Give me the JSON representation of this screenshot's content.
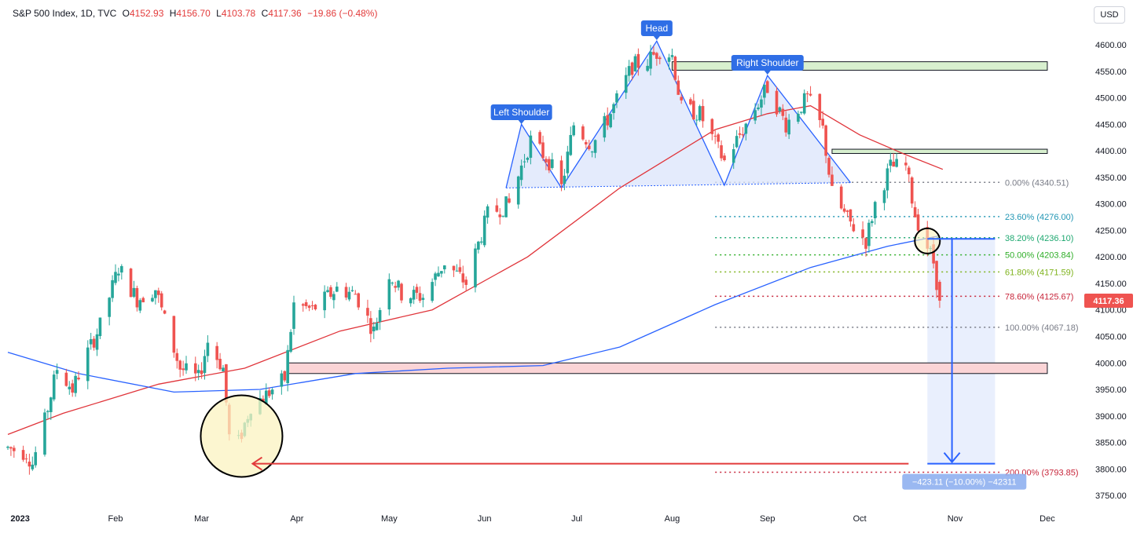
{
  "header": {
    "symbol": "S&P 500 Index, 1D, TVC",
    "open_label": "O",
    "open": "4152.93",
    "high_label": "H",
    "high": "4156.70",
    "low_label": "L",
    "low": "4103.78",
    "close_label": "C",
    "close": "4117.36",
    "change": "−19.86 (−0.48%)",
    "currency": "USD"
  },
  "colors": {
    "up": "#26a69a",
    "down": "#ef5350",
    "ma_red": "#e0343a",
    "ma_blue": "#2962ff",
    "pattern_fill": "#dbe4fb",
    "pattern_line": "#2962ff",
    "resistance_fill": "#d8f0cf",
    "support_fill": "#fbd4d6",
    "highlight_fill": "#fbf3c0",
    "projection_fill": "#e3ebfd"
  },
  "chart_data": {
    "type": "candlestick",
    "title": "S&P 500 Index, 1D, TVC",
    "ylim": [
      3725,
      4640
    ],
    "y_ticks": [
      3750,
      3800,
      3850,
      3900,
      3950,
      4000,
      4050,
      4100,
      4150,
      4200,
      4250,
      4300,
      4350,
      4400,
      4450,
      4500,
      4550,
      4600
    ],
    "y_tick_labels": [
      "3750.00",
      "3800.00",
      "3850.00",
      "3900.00",
      "3950.00",
      "4000.00",
      "4050.00",
      "4100.00",
      "4150.00",
      "4200.00",
      "4250.00",
      "4300.00",
      "4350.00",
      "4400.00",
      "4450.00",
      "4500.00",
      "4550.00",
      "4600.00"
    ],
    "x_labels": [
      {
        "date": "2023-01-01",
        "label": "2023"
      },
      {
        "date": "2023-02-01",
        "label": "Feb"
      },
      {
        "date": "2023-03-01",
        "label": "Mar"
      },
      {
        "date": "2023-04-01",
        "label": "Apr"
      },
      {
        "date": "2023-05-01",
        "label": "May"
      },
      {
        "date": "2023-06-01",
        "label": "Jun"
      },
      {
        "date": "2023-07-01",
        "label": "Jul"
      },
      {
        "date": "2023-08-01",
        "label": "Aug"
      },
      {
        "date": "2023-09-01",
        "label": "Sep"
      },
      {
        "date": "2023-10-01",
        "label": "Oct"
      },
      {
        "date": "2023-11-01",
        "label": "Nov"
      },
      {
        "date": "2023-12-01",
        "label": "Dec"
      }
    ],
    "xlim": [
      "2022-12-28",
      "2023-12-12"
    ],
    "price_anchors": [
      [
        "2022-12-28",
        3840
      ],
      [
        "2023-01-03",
        3830
      ],
      [
        "2023-01-05",
        3810
      ],
      [
        "2023-01-09",
        3890
      ],
      [
        "2023-01-13",
        3990
      ],
      [
        "2023-01-18",
        3950
      ],
      [
        "2023-01-23",
        4020
      ],
      [
        "2023-01-27",
        4070
      ],
      [
        "2023-02-02",
        4180
      ],
      [
        "2023-02-08",
        4120
      ],
      [
        "2023-02-14",
        4140
      ],
      [
        "2023-02-17",
        4080
      ],
      [
        "2023-02-22",
        3990
      ],
      [
        "2023-02-28",
        3970
      ],
      [
        "2023-03-03",
        4040
      ],
      [
        "2023-03-08",
        3990
      ],
      [
        "2023-03-10",
        3860
      ],
      [
        "2023-03-13",
        3850
      ],
      [
        "2023-03-17",
        3920
      ],
      [
        "2023-03-22",
        3940
      ],
      [
        "2023-03-28",
        3970
      ],
      [
        "2023-03-31",
        4110
      ],
      [
        "2023-04-06",
        4100
      ],
      [
        "2023-04-14",
        4140
      ],
      [
        "2023-04-20",
        4130
      ],
      [
        "2023-04-26",
        4060
      ],
      [
        "2023-05-01",
        4170
      ],
      [
        "2023-05-05",
        4130
      ],
      [
        "2023-05-12",
        4125
      ],
      [
        "2023-05-19",
        4190
      ],
      [
        "2023-05-26",
        4150
      ],
      [
        "2023-06-02",
        4280
      ],
      [
        "2023-06-09",
        4300
      ],
      [
        "2023-06-13",
        4370
      ],
      [
        "2023-06-16",
        4420
      ],
      [
        "2023-06-22",
        4380
      ],
      [
        "2023-06-26",
        4330
      ],
      [
        "2023-06-30",
        4450
      ],
      [
        "2023-07-06",
        4410
      ],
      [
        "2023-07-12",
        4470
      ],
      [
        "2023-07-19",
        4560
      ],
      [
        "2023-07-24",
        4570
      ],
      [
        "2023-07-28",
        4590
      ],
      [
        "2023-08-01",
        4580
      ],
      [
        "2023-08-04",
        4480
      ],
      [
        "2023-08-10",
        4470
      ],
      [
        "2023-08-18",
        4380
      ],
      [
        "2023-08-23",
        4430
      ],
      [
        "2023-08-28",
        4480
      ],
      [
        "2023-09-01",
        4520
      ],
      [
        "2023-09-07",
        4450
      ],
      [
        "2023-09-14",
        4500
      ],
      [
        "2023-09-19",
        4440
      ],
      [
        "2023-09-22",
        4320
      ],
      [
        "2023-09-27",
        4270
      ],
      [
        "2023-10-03",
        4230
      ],
      [
        "2023-10-06",
        4300
      ],
      [
        "2023-10-11",
        4370
      ],
      [
        "2023-10-16",
        4370
      ],
      [
        "2023-10-19",
        4280
      ],
      [
        "2023-10-23",
        4220
      ],
      [
        "2023-10-25",
        4190
      ],
      [
        "2023-10-27",
        4117
      ]
    ],
    "last_candle": {
      "date": "2023-10-27",
      "open": 4152.93,
      "high": 4156.7,
      "low": 4103.78,
      "close": 4117.36
    },
    "series": [
      {
        "role": "moving-average-red",
        "points": [
          [
            "2022-12-28",
            3865
          ],
          [
            "2023-01-15",
            3905
          ],
          [
            "2023-02-15",
            3960
          ],
          [
            "2023-03-15",
            3990
          ],
          [
            "2023-04-15",
            4060
          ],
          [
            "2023-05-15",
            4100
          ],
          [
            "2023-06-15",
            4200
          ],
          [
            "2023-07-15",
            4330
          ],
          [
            "2023-08-15",
            4440
          ],
          [
            "2023-09-01",
            4470
          ],
          [
            "2023-09-15",
            4485
          ],
          [
            "2023-10-01",
            4430
          ],
          [
            "2023-10-15",
            4395
          ],
          [
            "2023-10-28",
            4365
          ]
        ]
      },
      {
        "role": "moving-average-blue",
        "points": [
          [
            "2022-12-28",
            4020
          ],
          [
            "2023-01-20",
            3980
          ],
          [
            "2023-02-20",
            3945
          ],
          [
            "2023-03-20",
            3950
          ],
          [
            "2023-04-20",
            3980
          ],
          [
            "2023-05-20",
            3990
          ],
          [
            "2023-06-20",
            3995
          ],
          [
            "2023-07-15",
            4030
          ],
          [
            "2023-08-15",
            4110
          ],
          [
            "2023-09-15",
            4180
          ],
          [
            "2023-10-10",
            4220
          ],
          [
            "2023-10-27",
            4240
          ]
        ]
      }
    ],
    "current_price_label": "4117.36",
    "fibonacci": [
      {
        "level": 4340.51,
        "label": "0.00% (4340.51)",
        "color": "#787b86"
      },
      {
        "level": 4276.0,
        "label": "23.60% (4276.00)",
        "color": "#2196b4"
      },
      {
        "level": 4236.1,
        "label": "38.20% (4236.10)",
        "color": "#1ea870"
      },
      {
        "level": 4203.84,
        "label": "50.00% (4203.84)",
        "color": "#2fae28"
      },
      {
        "level": 4171.59,
        "label": "61.80% (4171.59)",
        "color": "#7fb31d"
      },
      {
        "level": 4125.67,
        "label": "78.60% (4125.67)",
        "color": "#c8263b"
      },
      {
        "level": 4067.18,
        "label": "100.00% (4067.18)",
        "color": "#787b86"
      },
      {
        "level": 3793.85,
        "label": "200.00% (3793.85)",
        "color": "#c8263b"
      }
    ],
    "fib_start": "2023-08-15",
    "annotations": {
      "left_shoulder": "Left Shoulder",
      "head": "Head",
      "right_shoulder": "Right Shoulder",
      "measure": "−423.11 (−10.00%) −42311"
    },
    "pattern_points": [
      [
        "2023-06-08",
        4330
      ],
      [
        "2023-06-13",
        4450
      ],
      [
        "2023-06-26",
        4330
      ],
      [
        "2023-07-27",
        4607
      ],
      [
        "2023-08-18",
        4335
      ],
      [
        "2023-09-01",
        4542
      ],
      [
        "2023-09-28",
        4340
      ]
    ],
    "neckline": [
      [
        "2023-06-08",
        4330
      ],
      [
        "2023-09-28",
        4340
      ]
    ],
    "resistance_zones": [
      {
        "from": "2023-08-01",
        "to": "2023-12-01",
        "low": 4552,
        "high": 4568
      },
      {
        "from": "2023-09-22",
        "to": "2023-12-01",
        "low": 4395,
        "high": 4403
      }
    ],
    "support_zone": {
      "from": "2023-03-29",
      "to": "2023-12-01",
      "low": 3980,
      "high": 4000
    },
    "circles": [
      {
        "date": "2023-03-14",
        "value": 3862
      },
      {
        "date": "2023-10-23",
        "value": 4230
      }
    ],
    "target_arrow": {
      "from_date": "2023-03-14",
      "to_date": "2023-10-22",
      "value": 3810
    },
    "projection": {
      "from": "2023-10-23",
      "to": "2023-11-14",
      "top": 4234,
      "bottom": 3810,
      "arrow_date": "2023-10-31"
    }
  }
}
